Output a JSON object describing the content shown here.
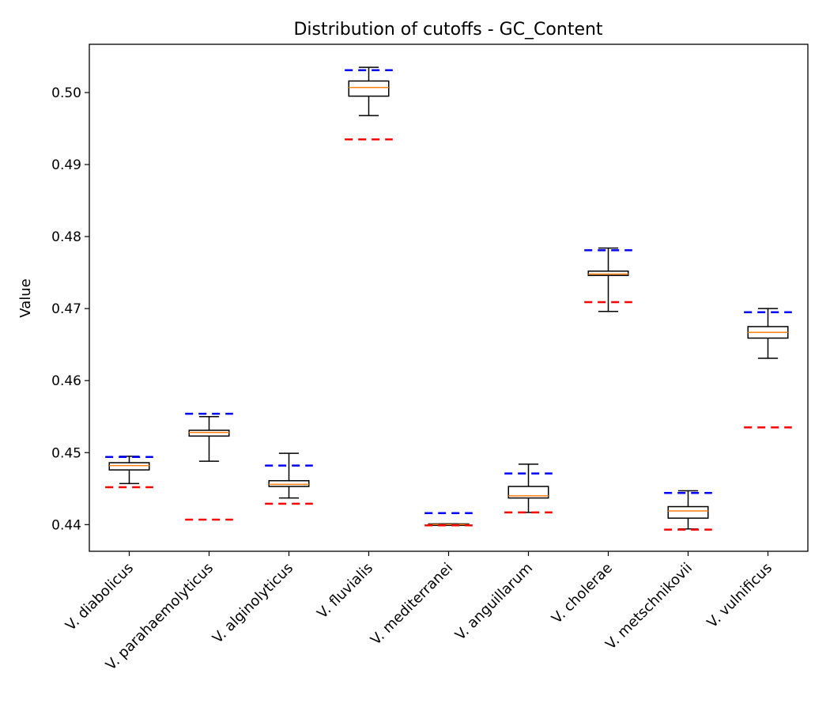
{
  "chart_data": {
    "type": "box",
    "title": "Distribution of cutoffs - GC_Content",
    "xlabel": "",
    "ylabel": "Value",
    "ylim": [
      0.4363,
      0.5067
    ],
    "yticks": [
      0.44,
      0.45,
      0.46,
      0.47,
      0.48,
      0.49,
      0.5
    ],
    "ytick_labels": [
      "0.44",
      "0.45",
      "0.46",
      "0.47",
      "0.48",
      "0.49",
      "0.50"
    ],
    "grid": false,
    "colors": {
      "box": "#000000",
      "median": "#ff7f0e",
      "upper_line": "#0000ff",
      "lower_line": "#ff0000"
    },
    "categories": [
      "V. diabolicus",
      "V. parahaemolyticus",
      "V. alginolyticus",
      "V. fluvialis",
      "V. mediterranei",
      "V. anguillarum",
      "V. cholerae",
      "V. metschnikovii",
      "V. vulnificus"
    ],
    "boxes": [
      {
        "whisker_low": 0.4457,
        "q1": 0.4476,
        "median": 0.4482,
        "q3": 0.4486,
        "whisker_high": 0.4495,
        "upper_line": 0.4494,
        "lower_line": 0.4452
      },
      {
        "whisker_low": 0.4488,
        "q1": 0.4523,
        "median": 0.4528,
        "q3": 0.4531,
        "whisker_high": 0.455,
        "upper_line": 0.4554,
        "lower_line": 0.4407
      },
      {
        "whisker_low": 0.4437,
        "q1": 0.4453,
        "median": 0.4456,
        "q3": 0.4461,
        "whisker_high": 0.4499,
        "upper_line": 0.4482,
        "lower_line": 0.4429
      },
      {
        "whisker_low": 0.4968,
        "q1": 0.4995,
        "median": 0.5007,
        "q3": 0.5016,
        "whisker_high": 0.5035,
        "upper_line": 0.5031,
        "lower_line": 0.4935
      },
      {
        "whisker_low": 0.4399,
        "q1": 0.4399,
        "median": 0.44,
        "q3": 0.4401,
        "whisker_high": 0.4401,
        "upper_line": 0.4416,
        "lower_line": 0.4399
      },
      {
        "whisker_low": 0.4417,
        "q1": 0.4437,
        "median": 0.444,
        "q3": 0.4453,
        "whisker_high": 0.4484,
        "upper_line": 0.4471,
        "lower_line": 0.4417
      },
      {
        "whisker_low": 0.4696,
        "q1": 0.4746,
        "median": 0.4748,
        "q3": 0.4752,
        "whisker_high": 0.4784,
        "upper_line": 0.4781,
        "lower_line": 0.4709
      },
      {
        "whisker_low": 0.4394,
        "q1": 0.4409,
        "median": 0.4419,
        "q3": 0.4425,
        "whisker_high": 0.4447,
        "upper_line": 0.4444,
        "lower_line": 0.4393
      },
      {
        "whisker_low": 0.4631,
        "q1": 0.4659,
        "median": 0.4667,
        "q3": 0.4675,
        "whisker_high": 0.47,
        "upper_line": 0.4695,
        "lower_line": 0.4535
      }
    ]
  }
}
